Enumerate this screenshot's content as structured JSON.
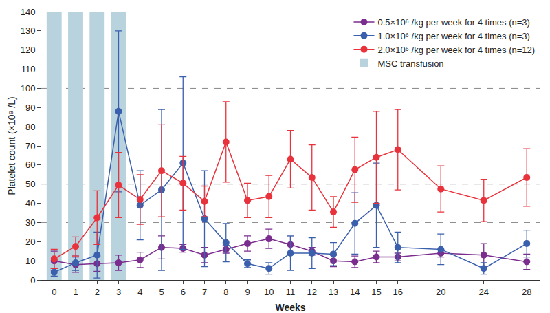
{
  "chart_data": {
    "type": "line",
    "x_label": "Weeks",
    "y_label": "Platelet count (×10⁹ /L)",
    "categories": [
      "0",
      "1",
      "2",
      "3",
      "4",
      "5",
      "6",
      "7",
      "8",
      "9",
      "10",
      "11",
      "12",
      "13",
      "14",
      "15",
      "16",
      null,
      "20",
      null,
      "24",
      null,
      "28"
    ],
    "series": [
      {
        "name": "0.5×10⁶ /kg per week for 4 times (n=3)",
        "color": "#7b2d8e",
        "marker": "circle",
        "values": [
          10,
          8,
          8.5,
          9,
          10.5,
          17,
          16.5,
          13,
          16,
          19,
          21.5,
          18.5,
          15,
          10,
          9.5,
          12,
          12,
          null,
          14,
          null,
          13,
          null,
          9.5
        ],
        "errors": [
          5,
          4,
          4,
          4,
          4,
          6,
          2,
          4,
          2,
          4,
          5,
          4,
          2,
          3,
          3,
          3,
          2,
          null,
          2,
          null,
          6,
          null,
          4
        ]
      },
      {
        "name": "1.0×10⁶ /kg per week for 4 times (n=3)",
        "color": "#3a5fad",
        "marker": "circle",
        "values": [
          4,
          9,
          13,
          88,
          39,
          47,
          61,
          32,
          19.5,
          8.5,
          6,
          14,
          14,
          13.5,
          29.5,
          39,
          17,
          null,
          16,
          null,
          6,
          null,
          19
        ],
        "errors": [
          2,
          4,
          12,
          42,
          18,
          42,
          45,
          25,
          10,
          2,
          3,
          9,
          8,
          6,
          16,
          22,
          8,
          null,
          8,
          null,
          3,
          null,
          7
        ]
      },
      {
        "name": "2.0×10⁶ /kg per week for 4 times (n=12)",
        "color": "#e8323c",
        "marker": "circle",
        "values": [
          11,
          17.5,
          32.5,
          49.5,
          42,
          57,
          50.5,
          41,
          72,
          41.5,
          43.5,
          63,
          53.5,
          35.5,
          57.5,
          64,
          68,
          null,
          47.5,
          null,
          41.5,
          null,
          53.5
        ],
        "errors": [
          5,
          5,
          14,
          17,
          13,
          24,
          14,
          8,
          21,
          9,
          11,
          15,
          17,
          8,
          17,
          24,
          21,
          null,
          12,
          null,
          11,
          null,
          15
        ]
      }
    ],
    "shaded": {
      "name": "MSC transfusion",
      "color": "#b9d3de",
      "categories": [
        "0",
        "1",
        "2",
        "3"
      ]
    },
    "hlines": [
      30,
      50,
      100
    ],
    "ylim": [
      0,
      140
    ],
    "yticks": [
      0,
      10,
      20,
      30,
      40,
      50,
      60,
      70,
      80,
      90,
      100,
      110,
      120,
      130,
      140
    ],
    "grid": false,
    "legend": "top right"
  }
}
